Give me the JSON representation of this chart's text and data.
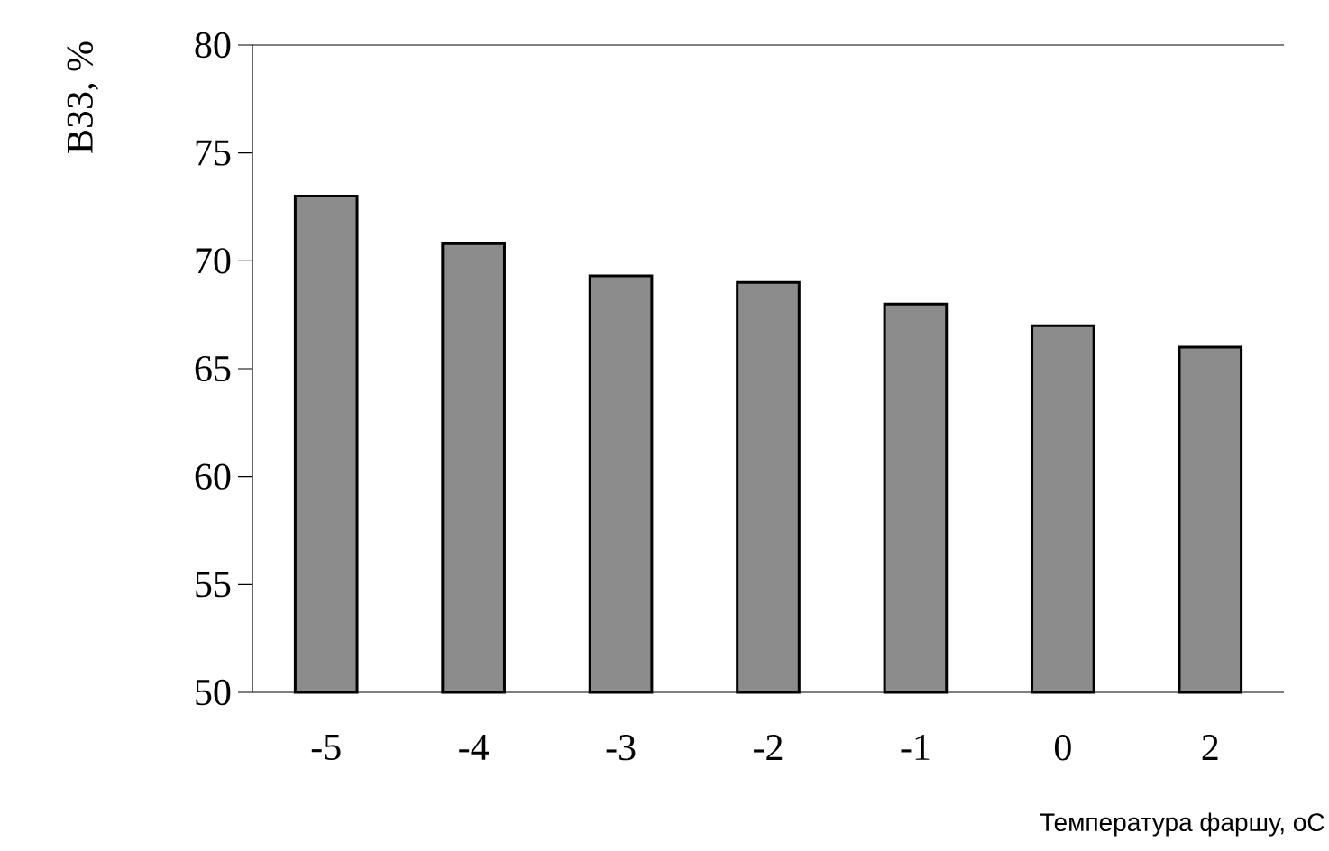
{
  "chart_data": {
    "type": "bar",
    "ylabel": "ВЗЗ, %",
    "xlabel": "Температура фаршу, оС",
    "categories": [
      "-5",
      "-4",
      "-3",
      "-2",
      "-1",
      "0",
      "2"
    ],
    "values": [
      73,
      70.8,
      69.3,
      69.0,
      68.0,
      67.0,
      66.0
    ],
    "color": "#8c8c8c",
    "ylim": [
      50,
      80
    ],
    "yticks": [
      50,
      55,
      60,
      65,
      70,
      75,
      80
    ]
  }
}
